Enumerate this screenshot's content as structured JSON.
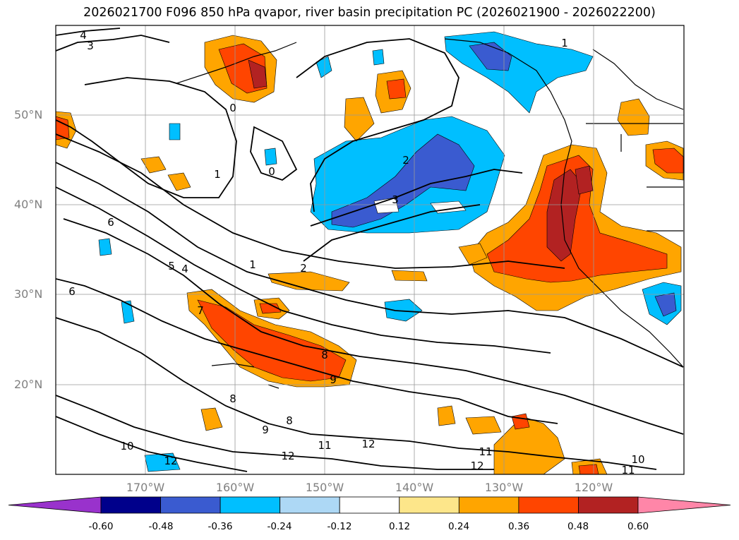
{
  "title": "2026021700 F096 850 hPa qvapor, river basin precipitation PC (2026021900 - 2026022200)",
  "latitude_labels": [
    "50°N",
    "40°N",
    "30°N",
    "20°N"
  ],
  "longitude_labels": [
    "170°W",
    "160°W",
    "150°W",
    "140°W",
    "130°W",
    "120°W"
  ],
  "contour_labels": [
    "4",
    "3",
    "1",
    "0",
    "1",
    "0",
    "2",
    "3",
    "6",
    "5",
    "4",
    "1",
    "2",
    "6",
    "7",
    "8",
    "9",
    "8",
    "9",
    "8",
    "10",
    "11",
    "12",
    "12",
    "12",
    "11",
    "12",
    "10",
    "11"
  ],
  "colorbar": {
    "tick_labels": [
      "-0.60",
      "-0.48",
      "-0.36",
      "-0.24",
      "-0.12",
      "0.12",
      "0.24",
      "0.36",
      "0.48",
      "0.60"
    ],
    "colors": [
      "#9932cc",
      "#00008b",
      "#3a5bd0",
      "#00bfff",
      "#add8f5",
      "#ffffff",
      "#fde68a",
      "#ffa500",
      "#ff4500",
      "#b22222",
      "#ff86a8"
    ]
  }
}
